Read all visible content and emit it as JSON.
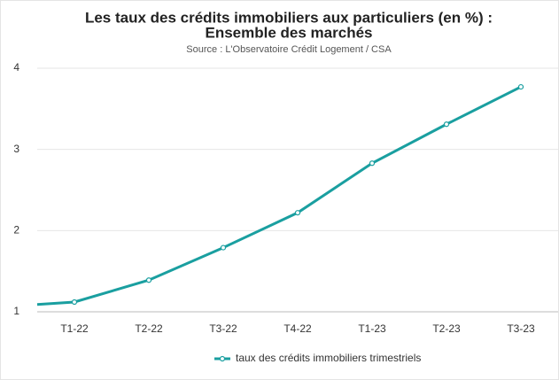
{
  "chart_data": {
    "type": "line",
    "title": [
      "Les taux des crédits immobiliers aux particuliers (en %) :",
      "Ensemble des marchés"
    ],
    "subtitle": "Source : L'Observatoire Crédit Logement / CSA",
    "categories": [
      null,
      "T1-22",
      "T2-22",
      "T3-22",
      "T4-22",
      "T1-23",
      "T2-23",
      "T3-23"
    ],
    "series": [
      {
        "name": "taux des crédits immobiliers trimestriels",
        "color": "#1a9fa0",
        "values": [
          1.09,
          1.12,
          1.39,
          1.79,
          2.22,
          2.83,
          3.31,
          3.77
        ]
      }
    ],
    "ylim": [
      1,
      4
    ],
    "yticks": [
      1,
      2,
      3,
      4
    ],
    "grid": true,
    "legend": "bottom"
  }
}
